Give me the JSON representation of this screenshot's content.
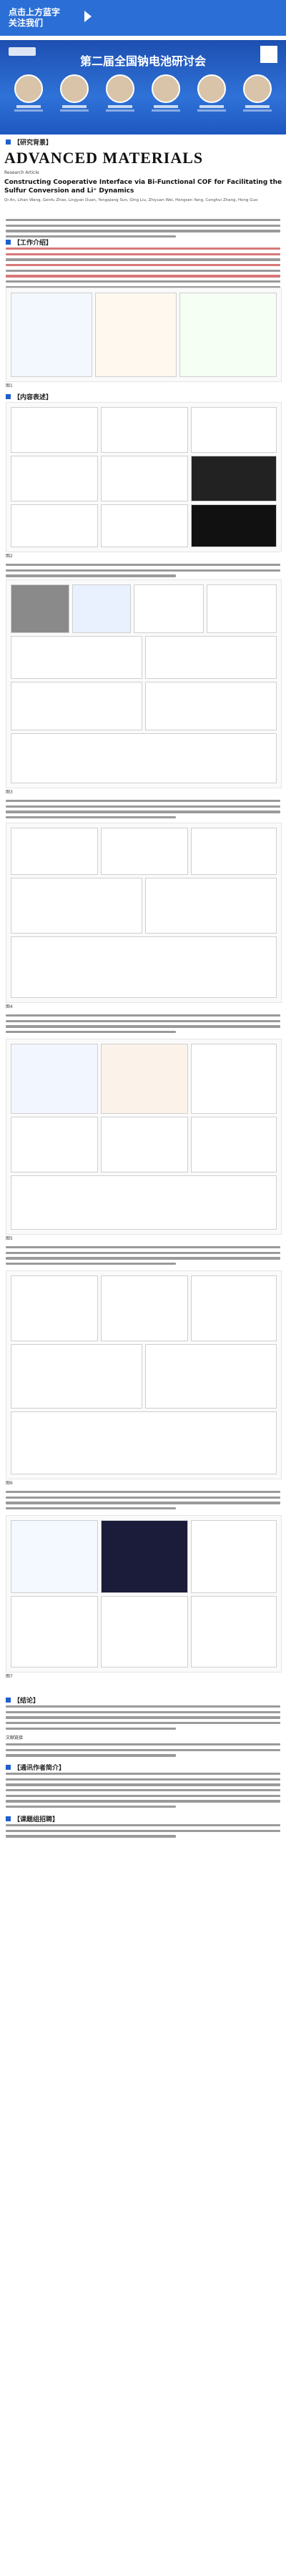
{
  "banner": {
    "cta_line1": "点击上方蓝字",
    "cta_line2": "关注我们"
  },
  "conference": {
    "title": "第二届全国钠电池研讨会"
  },
  "journal": {
    "name": "ADVANCED MATERIALS",
    "article_type": "Research Article",
    "article_title": "Constructing Cooperative Interface via Bi-Functional COF for Facilitating the Sulfur Conversion and Li⁺ Dynamics",
    "authors": "Qi An, Lihan Wang, Genfu Zhao, Lingyan Duan, Yongqiang Sun, Qing Liu, Zhiyuan Wei, Hongsen Yang, Conghui Zhang, Hong Guo"
  },
  "sections": {
    "s1": "【研究背景】",
    "s2": "【工作介绍】",
    "s3": "【内容表述】",
    "s4": "【结论】",
    "s5": "【通讯作者简介】",
    "s6": "【课题组招聘】"
  },
  "figures": {
    "fig1": "图1",
    "fig2": "图2",
    "fig3": "图3",
    "fig4": "图4",
    "fig5": "图5",
    "fig6": "图6",
    "fig7": "图7"
  },
  "reference_label": "文献链接"
}
